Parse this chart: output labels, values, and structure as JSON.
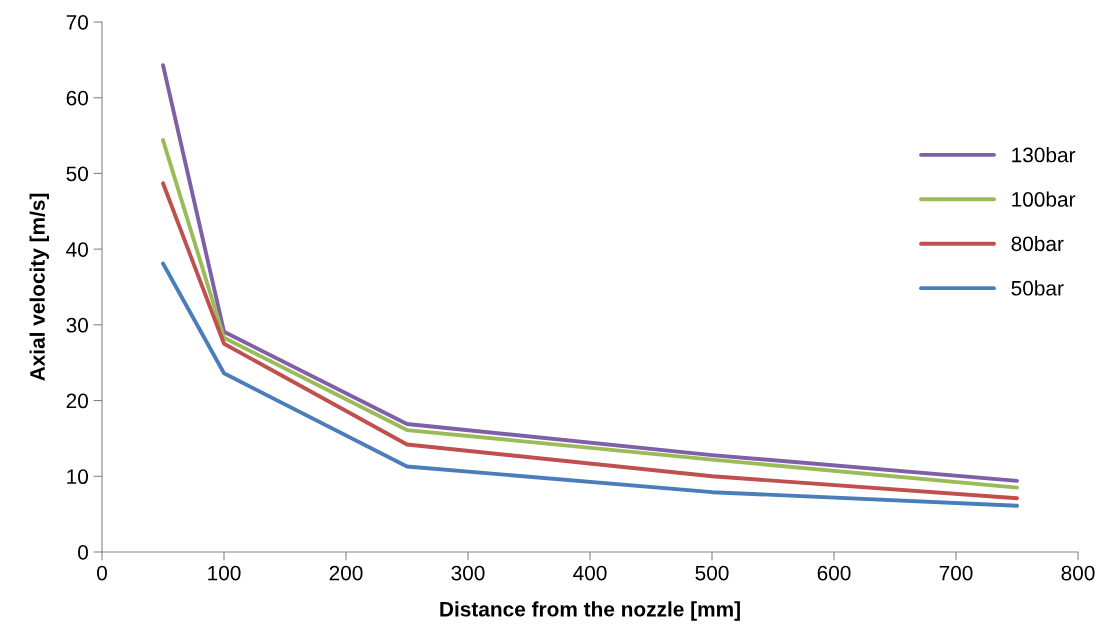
{
  "chart_data": {
    "type": "line",
    "xlabel": "Distance from the nozzle [mm]",
    "ylabel": "Axial velocity [m/s]",
    "x": [
      50,
      100,
      250,
      500,
      750
    ],
    "series": [
      {
        "name": "130bar",
        "color": "#7f5fa8",
        "values": [
          64.3,
          29.1,
          16.9,
          12.8,
          9.4
        ]
      },
      {
        "name": "100bar",
        "color": "#9bbb59",
        "values": [
          54.4,
          28.3,
          16.1,
          12.2,
          8.5
        ]
      },
      {
        "name": "80bar",
        "color": "#c0504d",
        "values": [
          48.7,
          27.5,
          14.2,
          10.0,
          7.1
        ]
      },
      {
        "name": "50bar",
        "color": "#4a7ebb",
        "values": [
          38.1,
          23.6,
          11.3,
          7.9,
          6.1
        ]
      }
    ],
    "xlim": [
      0,
      800
    ],
    "xticks": [
      0,
      100,
      200,
      300,
      400,
      500,
      600,
      700,
      800
    ],
    "ylim": [
      0,
      70
    ],
    "yticks": [
      0,
      10,
      20,
      30,
      40,
      50,
      60,
      70
    ],
    "grid": false,
    "legend": "right",
    "marker": "none",
    "line_style": "solid"
  }
}
